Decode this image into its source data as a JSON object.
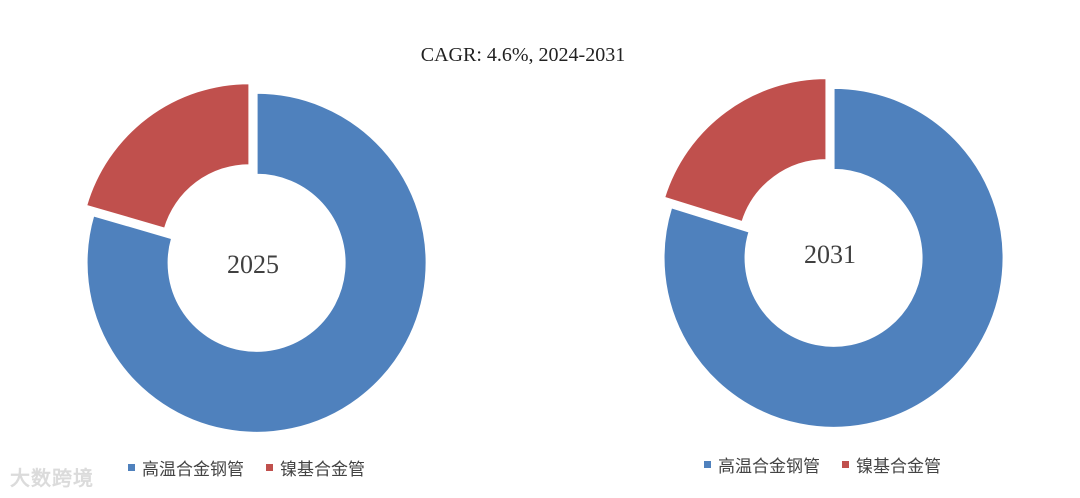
{
  "title": "CAGR:   4.6%, 2024-2031",
  "watermark": "大数跨境",
  "colors": {
    "series_1": "#4F81BD",
    "series_2": "#C0504D"
  },
  "chart_data": [
    {
      "type": "pie",
      "donut": true,
      "center_label": "2025",
      "labels": [
        "高温合金钢管",
        "镍基合金管"
      ],
      "values": [
        79.5,
        20.5
      ],
      "legend_position": "bottom"
    },
    {
      "type": "pie",
      "donut": true,
      "center_label": "2031",
      "labels": [
        "高温合金钢管",
        "镍基合金管"
      ],
      "values": [
        79.8,
        20.2
      ],
      "legend_position": "bottom"
    }
  ]
}
